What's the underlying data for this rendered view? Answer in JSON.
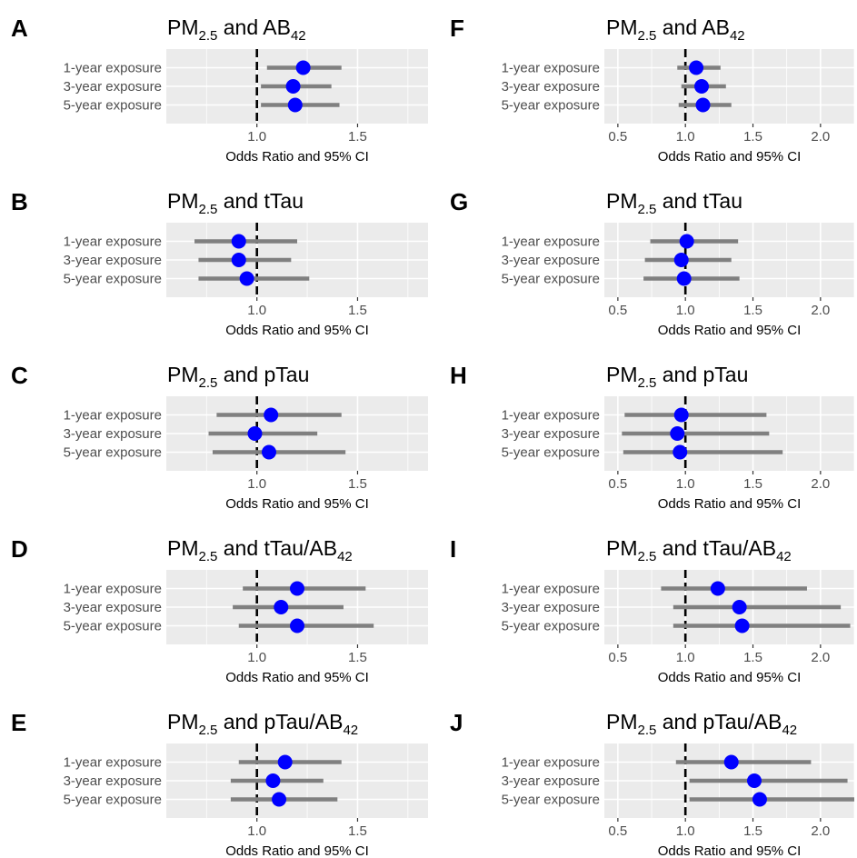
{
  "chart_data": [
    {
      "letter": "A",
      "title": {
        "main": "PM",
        "sub": "2.5",
        "mid": " and AB",
        "sub2": "42",
        "tail": ""
      },
      "type": "forest",
      "xlabel": "Odds Ratio and 95% CI",
      "xlim": [
        0.55,
        1.85
      ],
      "xticks": [
        1.0,
        1.5
      ],
      "xtick_labels": [
        "1.0",
        "1.5"
      ],
      "reference_line": 1.0,
      "categories": [
        "1-year exposure",
        "3-year exposure",
        "5-year exposure"
      ],
      "estimates": [
        1.23,
        1.18,
        1.19
      ],
      "ci_low": [
        1.05,
        1.02,
        1.02
      ],
      "ci_high": [
        1.42,
        1.37,
        1.41
      ]
    },
    {
      "letter": "B",
      "title": {
        "main": "PM",
        "sub": "2.5",
        "mid": " and tTau",
        "sub2": "",
        "tail": ""
      },
      "type": "forest",
      "xlabel": "Odds Ratio and 95% CI",
      "xlim": [
        0.55,
        1.85
      ],
      "xticks": [
        1.0,
        1.5
      ],
      "xtick_labels": [
        "1.0",
        "1.5"
      ],
      "reference_line": 1.0,
      "categories": [
        "1-year exposure",
        "3-year exposure",
        "5-year exposure"
      ],
      "estimates": [
        0.91,
        0.91,
        0.95
      ],
      "ci_low": [
        0.69,
        0.71,
        0.71
      ],
      "ci_high": [
        1.2,
        1.17,
        1.26
      ]
    },
    {
      "letter": "C",
      "title": {
        "main": "PM",
        "sub": "2.5",
        "mid": " and pTau",
        "sub2": "",
        "tail": ""
      },
      "type": "forest",
      "xlabel": "Odds Ratio and 95% CI",
      "xlim": [
        0.55,
        1.85
      ],
      "xticks": [
        1.0,
        1.5
      ],
      "xtick_labels": [
        "1.0",
        "1.5"
      ],
      "reference_line": 1.0,
      "categories": [
        "1-year exposure",
        "3-year exposure",
        "5-year exposure"
      ],
      "estimates": [
        1.07,
        0.99,
        1.06
      ],
      "ci_low": [
        0.8,
        0.76,
        0.78
      ],
      "ci_high": [
        1.42,
        1.3,
        1.44
      ]
    },
    {
      "letter": "D",
      "title": {
        "main": "PM",
        "sub": "2.5",
        "mid": " and tTau/AB",
        "sub2": "42",
        "tail": ""
      },
      "type": "forest",
      "xlabel": "Odds Ratio and 95% CI",
      "xlim": [
        0.55,
        1.85
      ],
      "xticks": [
        1.0,
        1.5
      ],
      "xtick_labels": [
        "1.0",
        "1.5"
      ],
      "reference_line": 1.0,
      "categories": [
        "1-year exposure",
        "3-year exposure",
        "5-year exposure"
      ],
      "estimates": [
        1.2,
        1.12,
        1.2
      ],
      "ci_low": [
        0.93,
        0.88,
        0.91
      ],
      "ci_high": [
        1.54,
        1.43,
        1.58
      ]
    },
    {
      "letter": "E",
      "title": {
        "main": "PM",
        "sub": "2.5",
        "mid": " and pTau/AB",
        "sub2": "42",
        "tail": ""
      },
      "type": "forest",
      "xlabel": "Odds Ratio and 95% CI",
      "xlim": [
        0.55,
        1.85
      ],
      "xticks": [
        1.0,
        1.5
      ],
      "xtick_labels": [
        "1.0",
        "1.5"
      ],
      "reference_line": 1.0,
      "categories": [
        "1-year exposure",
        "3-year exposure",
        "5-year exposure"
      ],
      "estimates": [
        1.14,
        1.08,
        1.11
      ],
      "ci_low": [
        0.91,
        0.87,
        0.87
      ],
      "ci_high": [
        1.42,
        1.33,
        1.4
      ]
    },
    {
      "letter": "F",
      "title": {
        "main": "PM",
        "sub": "2.5",
        "mid": " and AB",
        "sub2": "42",
        "tail": ""
      },
      "type": "forest",
      "xlabel": "Odds Ratio and 95% CI",
      "xlim": [
        0.4,
        2.25
      ],
      "xticks": [
        0.5,
        1.0,
        1.5,
        2.0
      ],
      "xtick_labels": [
        "0.5",
        "1.0",
        "1.5",
        "2.0"
      ],
      "reference_line": 1.0,
      "categories": [
        "1-year exposure",
        "3-year exposure",
        "5-year exposure"
      ],
      "estimates": [
        1.08,
        1.12,
        1.13
      ],
      "ci_low": [
        0.94,
        0.97,
        0.95
      ],
      "ci_high": [
        1.26,
        1.3,
        1.34
      ]
    },
    {
      "letter": "G",
      "title": {
        "main": "PM",
        "sub": "2.5",
        "mid": " and tTau",
        "sub2": "",
        "tail": ""
      },
      "type": "forest",
      "xlabel": "Odds Ratio and 95% CI",
      "xlim": [
        0.4,
        2.25
      ],
      "xticks": [
        0.5,
        1.0,
        1.5,
        2.0
      ],
      "xtick_labels": [
        "0.5",
        "1.0",
        "1.5",
        "2.0"
      ],
      "reference_line": 1.0,
      "categories": [
        "1-year exposure",
        "3-year exposure",
        "5-year exposure"
      ],
      "estimates": [
        1.01,
        0.97,
        0.99
      ],
      "ci_low": [
        0.74,
        0.7,
        0.69
      ],
      "ci_high": [
        1.39,
        1.34,
        1.4
      ]
    },
    {
      "letter": "H",
      "title": {
        "main": "PM",
        "sub": "2.5",
        "mid": " and pTau",
        "sub2": "",
        "tail": ""
      },
      "type": "forest",
      "xlabel": "Odds Ratio and 95% CI",
      "xlim": [
        0.4,
        2.25
      ],
      "xticks": [
        0.5,
        1.0,
        1.5,
        2.0
      ],
      "xtick_labels": [
        "0.5",
        "1.0",
        "1.5",
        "2.0"
      ],
      "reference_line": 1.0,
      "categories": [
        "1-year exposure",
        "3-year exposure",
        "5-year exposure"
      ],
      "estimates": [
        0.97,
        0.94,
        0.96
      ],
      "ci_low": [
        0.55,
        0.53,
        0.54
      ],
      "ci_high": [
        1.6,
        1.62,
        1.72
      ]
    },
    {
      "letter": "I",
      "title": {
        "main": "PM",
        "sub": "2.5",
        "mid": " and tTau/AB",
        "sub2": "42",
        "tail": ""
      },
      "type": "forest",
      "xlabel": "Odds Ratio and 95% CI",
      "xlim": [
        0.4,
        2.25
      ],
      "xticks": [
        0.5,
        1.0,
        1.5,
        2.0
      ],
      "xtick_labels": [
        "0.5",
        "1.0",
        "1.5",
        "2.0"
      ],
      "reference_line": 1.0,
      "categories": [
        "1-year exposure",
        "3-year exposure",
        "5-year exposure"
      ],
      "estimates": [
        1.24,
        1.4,
        1.42
      ],
      "ci_low": [
        0.82,
        0.91,
        0.91
      ],
      "ci_high": [
        1.9,
        2.15,
        2.22
      ]
    },
    {
      "letter": "J",
      "title": {
        "main": "PM",
        "sub": "2.5",
        "mid": " and pTau/AB",
        "sub2": "42",
        "tail": ""
      },
      "type": "forest",
      "xlabel": "Odds Ratio and 95% CI",
      "xlim": [
        0.4,
        2.25
      ],
      "xticks": [
        0.5,
        1.0,
        1.5,
        2.0
      ],
      "xtick_labels": [
        "0.5",
        "1.0",
        "1.5",
        "2.0"
      ],
      "reference_line": 1.0,
      "categories": [
        "1-year exposure",
        "3-year exposure",
        "5-year exposure"
      ],
      "estimates": [
        1.34,
        1.51,
        1.55
      ],
      "ci_low": [
        0.93,
        1.03,
        1.03
      ],
      "ci_high": [
        1.93,
        2.2,
        2.35
      ]
    }
  ],
  "colors": {
    "point": "#0000ff",
    "ci_line": "#808080",
    "panel_bg": "#ebebeb",
    "grid": "#ffffff",
    "reference_line": "#000000"
  }
}
